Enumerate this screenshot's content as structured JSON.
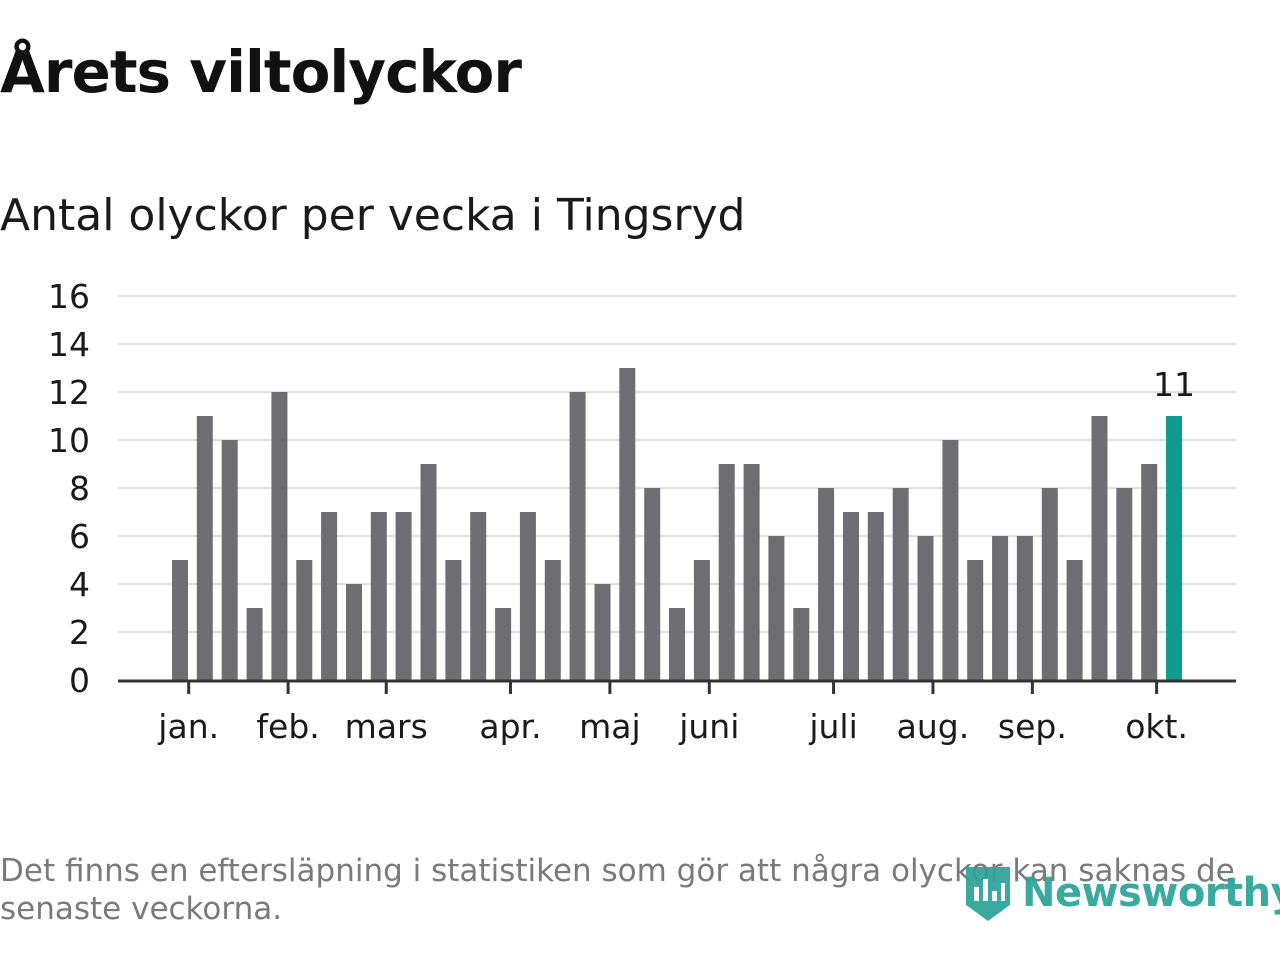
{
  "title": "Årets viltolyckor",
  "subtitle": "Antal olyckor per vecka i Tingsryd",
  "footnote": "Det finns en eftersläpning i statistiken som gör att några olyckor kan saknas de senaste veckorna.",
  "brand": {
    "name": "Newsworthy",
    "icon": "newsworthy-logo-icon",
    "color": "#2aa39a"
  },
  "colors": {
    "bar": "#6e6d72",
    "highlight": "#119c91",
    "grid": "#dddddd",
    "axis": "#333333"
  },
  "chart_data": {
    "type": "bar",
    "title": "Antal olyckor per vecka i Tingsryd",
    "xlabel": "",
    "ylabel": "",
    "ylim": [
      0,
      16
    ],
    "yticks": [
      0,
      2,
      4,
      6,
      8,
      10,
      12,
      14,
      16
    ],
    "grid": true,
    "values": [
      5,
      11,
      10,
      3,
      12,
      5,
      7,
      4,
      7,
      7,
      9,
      5,
      7,
      3,
      7,
      5,
      12,
      4,
      13,
      8,
      3,
      5,
      9,
      9,
      6,
      3,
      8,
      7,
      7,
      8,
      6,
      10,
      5,
      6,
      6,
      8,
      5,
      11,
      8,
      9,
      11
    ],
    "highlight_index": 40,
    "highlight_label": "11",
    "month_labels": [
      {
        "label": "jan.",
        "week_index": 0.35
      },
      {
        "label": "feb.",
        "week_index": 4.35
      },
      {
        "label": "mars",
        "week_index": 8.3
      },
      {
        "label": "apr.",
        "week_index": 13.3
      },
      {
        "label": "maj",
        "week_index": 17.3
      },
      {
        "label": "juni",
        "week_index": 21.3
      },
      {
        "label": "juli",
        "week_index": 26.3
      },
      {
        "label": "aug.",
        "week_index": 30.3
      },
      {
        "label": "sep.",
        "week_index": 34.3
      },
      {
        "label": "okt.",
        "week_index": 39.3
      }
    ]
  }
}
